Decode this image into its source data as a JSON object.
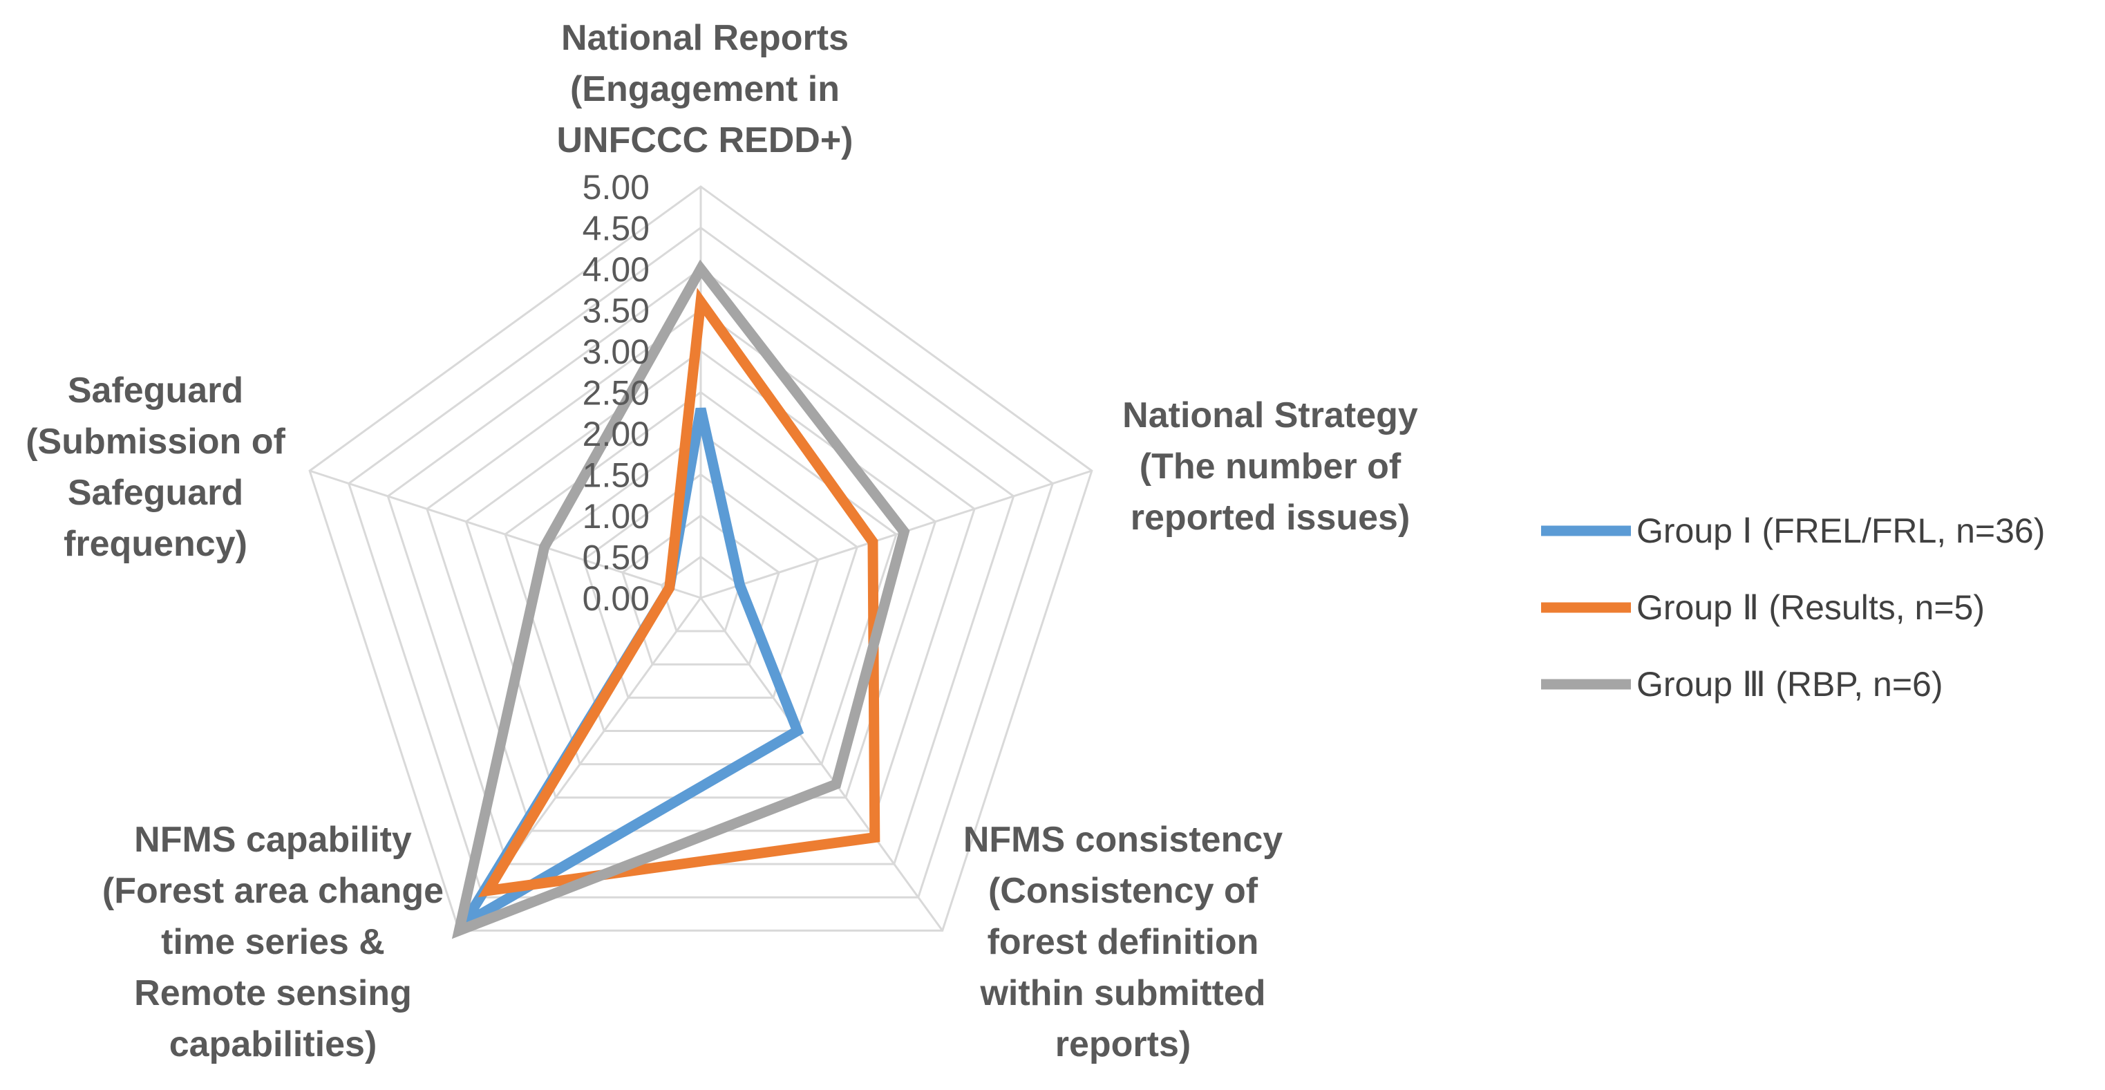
{
  "chart_data": {
    "type": "radar",
    "title": "",
    "axes": [
      {
        "label_lines": [
          "National Reports",
          "(Engagement in",
          "UNFCCC REDD+)"
        ]
      },
      {
        "label_lines": [
          "National Strategy",
          "(The number of",
          "reported issues)"
        ]
      },
      {
        "label_lines": [
          "NFMS consistency",
          "(Consistency of",
          "forest definition",
          "within submitted",
          "reports)"
        ]
      },
      {
        "label_lines": [
          "NFMS capability",
          "(Forest area change",
          "time series &",
          "Remote sensing",
          "capabilities)"
        ]
      },
      {
        "label_lines": [
          "Safeguard",
          "(Submission of",
          "Safeguard",
          "frequency)"
        ]
      }
    ],
    "rlim": [
      0,
      5
    ],
    "ticks": [
      "0.00",
      "0.50",
      "1.00",
      "1.50",
      "2.00",
      "2.50",
      "3.00",
      "3.50",
      "4.00",
      "4.50",
      "5.00"
    ],
    "tick_values": [
      0,
      0.5,
      1,
      1.5,
      2,
      2.5,
      3,
      3.5,
      4,
      4.5,
      5
    ],
    "series": [
      {
        "name": "Group Ⅰ (FREL/FRL, n=36)",
        "color": "#5b9bd5",
        "values": [
          2.3,
          0.5,
          2.0,
          4.9,
          0.4
        ]
      },
      {
        "name": "Group Ⅱ (Results, n=5)",
        "color": "#ed7d31",
        "values": [
          3.6,
          2.2,
          3.6,
          4.4,
          0.4
        ]
      },
      {
        "name": "Group Ⅲ (RBP, n=6)",
        "color": "#a5a5a5",
        "values": [
          4.0,
          2.6,
          2.8,
          5.0,
          2.0
        ]
      }
    ],
    "legend_position": "right",
    "grid": true
  }
}
